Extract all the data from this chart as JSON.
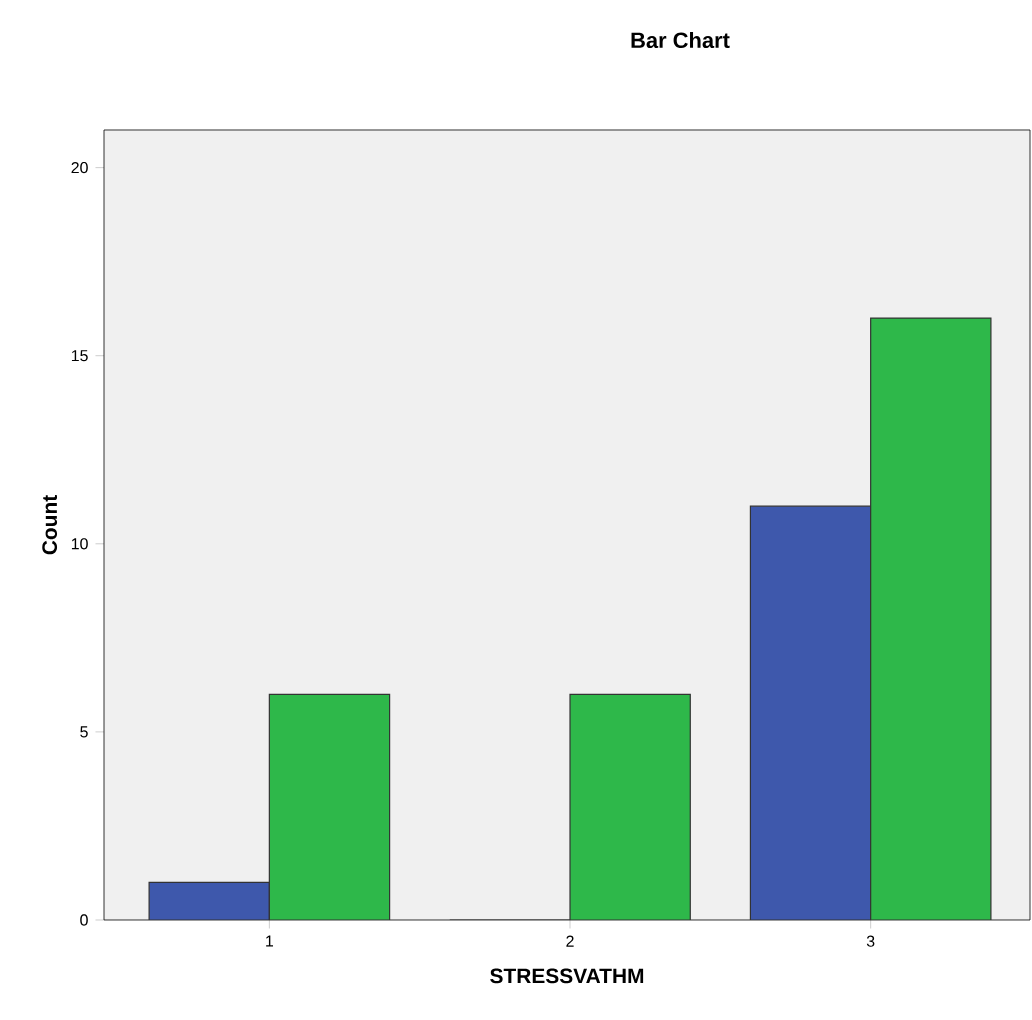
{
  "chart_data": {
    "type": "bar",
    "title": "Bar Chart",
    "xlabel": "STRESSVATHM",
    "ylabel": "Count",
    "categories": [
      "1",
      "2",
      "3"
    ],
    "series": [
      {
        "color": "#3e58ac",
        "values": [
          1,
          0,
          11
        ]
      },
      {
        "color": "#2eb84a",
        "values": [
          6,
          6,
          16
        ]
      }
    ],
    "ylim": [
      0,
      21
    ],
    "yticks": [
      0,
      5,
      10,
      15,
      20
    ]
  }
}
